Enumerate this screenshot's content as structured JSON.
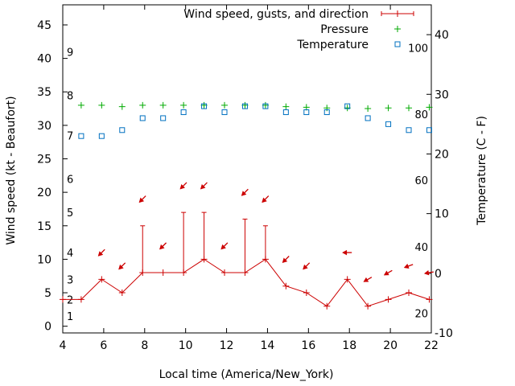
{
  "chart_data": {
    "type": "line",
    "title": "",
    "xlabel": "Local time (America/New_York)",
    "ylabel_left": "Wind speed (kt - Beaufort)",
    "ylabel_right": "Temperature (C - F)",
    "xlim": [
      4,
      22
    ],
    "ylim_left": [
      -1,
      48
    ],
    "ylim_right": [
      -10,
      45
    ],
    "x_ticks": [
      4,
      6,
      8,
      10,
      12,
      14,
      16,
      18,
      20,
      22
    ],
    "y_left_ticks": [
      0,
      5,
      10,
      15,
      20,
      25,
      30,
      35,
      40,
      45
    ],
    "y_right_ticks": [
      -10,
      0,
      10,
      20,
      30,
      40
    ],
    "beaufort_labels": [
      {
        "label": "1",
        "kt": 1.5
      },
      {
        "label": "2",
        "kt": 4
      },
      {
        "label": "3",
        "kt": 7
      },
      {
        "label": "4",
        "kt": 11
      },
      {
        "label": "5",
        "kt": 17
      },
      {
        "label": "6",
        "kt": 22
      },
      {
        "label": "7",
        "kt": 28.5
      },
      {
        "label": "8",
        "kt": 34.5
      },
      {
        "label": "9",
        "kt": 41
      }
    ],
    "fahrenheit_labels": [
      {
        "label": "20",
        "c": -6.7
      },
      {
        "label": "40",
        "c": 4.4
      },
      {
        "label": "60",
        "c": 15.6
      },
      {
        "label": "80",
        "c": 26.7
      },
      {
        "label": "100",
        "c": 37.8
      }
    ],
    "legend": [
      {
        "label": "Wind speed, gusts, and direction",
        "color": "#cc0000",
        "marker": "line-plus"
      },
      {
        "label": "Pressure",
        "color": "#00aa00",
        "marker": "plus"
      },
      {
        "label": "Temperature",
        "color": "#0070c0",
        "marker": "square"
      }
    ],
    "series": [
      {
        "name": "Wind speed",
        "color": "#cc0000",
        "x": [
          4,
          4.9,
          5.9,
          6.9,
          7.9,
          8.9,
          9.9,
          10.9,
          11.9,
          12.9,
          13.9,
          14.9,
          15.9,
          16.9,
          17.9,
          18.9,
          19.9,
          20.9,
          21.9
        ],
        "values": [
          4,
          4,
          7,
          5,
          8,
          8,
          8,
          10,
          8,
          8,
          10,
          6,
          5,
          3,
          7,
          3,
          4,
          5,
          4
        ]
      },
      {
        "name": "Gusts",
        "color": "#cc0000",
        "x": [
          7.9,
          9.9,
          10.9,
          12.9,
          13.9
        ],
        "values": [
          15,
          17,
          17,
          16,
          15
        ]
      },
      {
        "name": "Pressure",
        "color": "#00aa00",
        "x": [
          4.9,
          5.9,
          6.9,
          7.9,
          8.9,
          9.9,
          10.9,
          11.9,
          12.9,
          13.9,
          14.9,
          15.9,
          16.9,
          17.9,
          18.9,
          19.9,
          20.9,
          21.9
        ],
        "values": [
          33,
          33,
          32.8,
          33,
          33,
          33,
          33,
          33,
          33,
          33,
          32.8,
          32.7,
          32.6,
          32.6,
          32.5,
          32.6,
          32.6,
          32.7
        ]
      },
      {
        "name": "Temperature (C)",
        "color": "#0070c0",
        "x": [
          4.9,
          5.9,
          6.9,
          7.9,
          8.9,
          9.9,
          10.9,
          11.9,
          12.9,
          13.9,
          14.9,
          15.9,
          16.9,
          17.9,
          18.9,
          19.9,
          20.9,
          21.9
        ],
        "values": [
          23,
          23,
          24,
          26,
          26,
          27,
          28,
          27,
          28,
          28,
          27,
          27,
          27,
          28,
          26,
          25,
          24,
          24
        ]
      },
      {
        "name": "Wind direction",
        "color": "#cc0000",
        "x": [
          5.9,
          6.9,
          7.9,
          8.9,
          9.9,
          10.9,
          11.9,
          12.9,
          13.9,
          14.9,
          15.9,
          17.9,
          18.9,
          19.9,
          20.9,
          21.9
        ],
        "speed_axis_y": [
          11,
          9,
          19,
          12,
          21,
          21,
          12,
          20,
          19,
          10,
          9,
          11,
          7,
          8,
          9,
          8
        ],
        "direction_deg": [
          45,
          45,
          45,
          45,
          45,
          45,
          45,
          45,
          45,
          45,
          45,
          90,
          60,
          60,
          70,
          80
        ]
      }
    ]
  }
}
